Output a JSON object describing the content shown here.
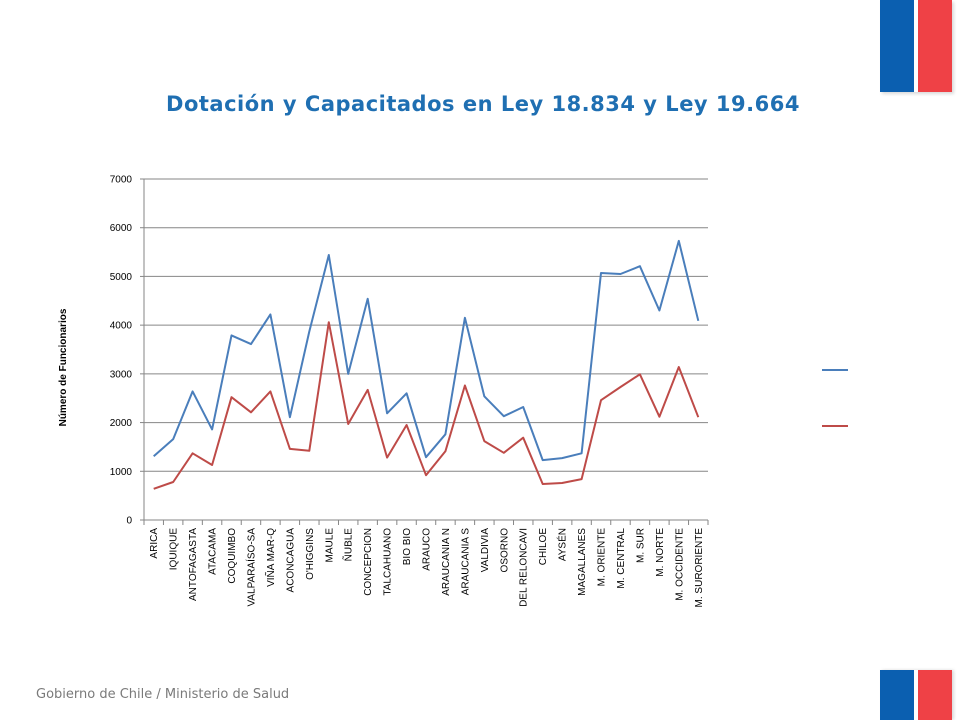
{
  "page": {
    "footer": "Gobierno de Chile / Ministerio de Salud"
  },
  "colors": {
    "flag_blue": "#0b5fb0",
    "flag_red": "#ef4146",
    "title": "#1f6fb2"
  },
  "chart_data": {
    "type": "line",
    "title": "Dotación y Capacitados en Ley 18.834 y Ley 19.664",
    "xlabel": "",
    "ylabel": "Número de Funcionarios",
    "ylim": [
      0,
      7000
    ],
    "yticks": [
      0,
      1000,
      2000,
      3000,
      4000,
      5000,
      6000,
      7000
    ],
    "grid": true,
    "legend": "right",
    "categories": [
      "ARICA",
      "IQUIQUE",
      "ANTOFAGASTA",
      "ATACAMA",
      "COQUIMBO",
      "VALPARAÍSO-SA",
      "VIÑA MAR-Q",
      "ACONCAGUA",
      "O'HIGGINS",
      "MAULE",
      "ÑUBLE",
      "CONCEPCION",
      "TALCAHUANO",
      "BIO BIO",
      "ARAUCO",
      "ARAUCANIA N",
      "ARAUCANIA S",
      "VALDIVIA",
      "OSORNO",
      "DEL RELONCAVI",
      "CHILOE",
      "AYSÉN",
      "MAGALLANES",
      "M. ORIENTE",
      "M. CENTRAL",
      "M. SUR",
      "M. NORTE",
      "M. OCCIDENTE",
      "M. SURORIENTE"
    ],
    "series": [
      {
        "color": "#4a7ebb",
        "values": [
          1310,
          1660,
          2640,
          1860,
          3790,
          3610,
          4220,
          2110,
          3870,
          5440,
          3000,
          4540,
          2190,
          2600,
          1290,
          1760,
          4150,
          2540,
          2130,
          2320,
          1230,
          1270,
          1370,
          5070,
          5050,
          5210,
          4300,
          5730,
          4090
        ]
      },
      {
        "color": "#be4b48",
        "values": [
          640,
          780,
          1370,
          1130,
          2520,
          2210,
          2640,
          1460,
          1420,
          4060,
          1970,
          2670,
          1280,
          1950,
          920,
          1410,
          2760,
          1620,
          1380,
          1690,
          740,
          760,
          840,
          2460,
          2730,
          2990,
          2120,
          3140,
          2110
        ]
      }
    ]
  }
}
